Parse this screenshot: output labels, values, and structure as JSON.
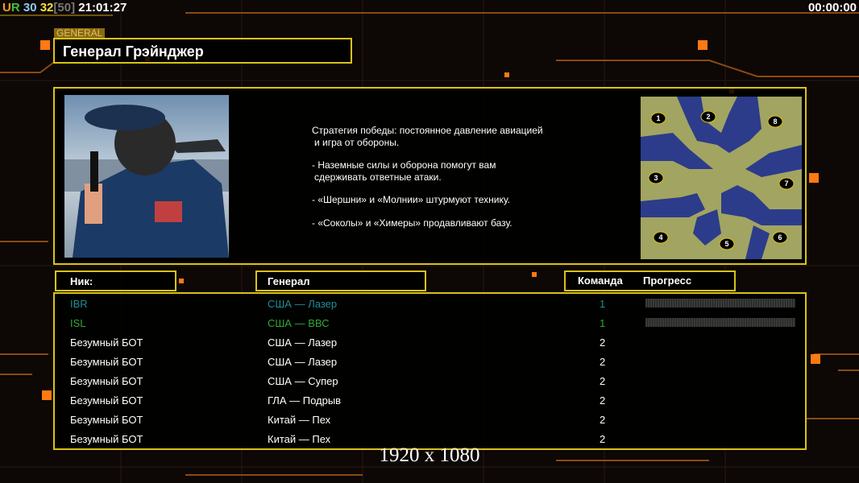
{
  "topbar": {
    "ur_u": "U",
    "ur_r": "R",
    "num1": "30",
    "num2": "32",
    "bracket": "[50]",
    "clock": "21:01:27",
    "timer": "00:00:00"
  },
  "general": {
    "section_label": "GENERAL",
    "name": "Генерал Грэйнджер"
  },
  "strategy": {
    "lines": [
      "Стратегия победы: постоянное давление авиацией",
      "и игра от обороны.",
      "- Наземные силы и оборона помогут вам",
      "сдерживать ответные атаки.",
      "- «Шершни» и «Молнии» штурмуют технику.",
      "- «Соколы» и «Химеры» продавливают базу."
    ]
  },
  "map": {
    "start_positions": [
      "1",
      "2",
      "3",
      "4",
      "5",
      "6",
      "7",
      "8"
    ]
  },
  "table": {
    "headers": {
      "nick": "Ник:",
      "general": "Генерал",
      "team": "Команда",
      "progress": "Прогресс"
    },
    "rows": [
      {
        "nick": "IBR",
        "general": "США — Лазер",
        "team": "1",
        "color": "#1f8f96",
        "progress": 0
      },
      {
        "nick": "ISL",
        "general": "США — ВВС",
        "team": "1",
        "color": "#34a834",
        "progress": 0
      },
      {
        "nick": "Безумный БОТ",
        "general": "США — Лазер",
        "team": "2",
        "color": "#ffffff"
      },
      {
        "nick": "Безумный БОТ",
        "general": "США — Лазер",
        "team": "2",
        "color": "#ffffff"
      },
      {
        "nick": "Безумный БОТ",
        "general": "США — Супер",
        "team": "2",
        "color": "#ffffff"
      },
      {
        "nick": "Безумный БОТ",
        "general": "ГЛА — Подрыв",
        "team": "2",
        "color": "#ffffff"
      },
      {
        "nick": "Безумный БОТ",
        "general": "Китай — Пех",
        "team": "2",
        "color": "#ffffff"
      },
      {
        "nick": "Безумный БОТ",
        "general": "Китай — Пех",
        "team": "2",
        "color": "#ffffff"
      }
    ]
  },
  "resolution": "1920 x 1080",
  "colors": {
    "accent": "#d9c21a",
    "orange": "#ff8a1a"
  }
}
